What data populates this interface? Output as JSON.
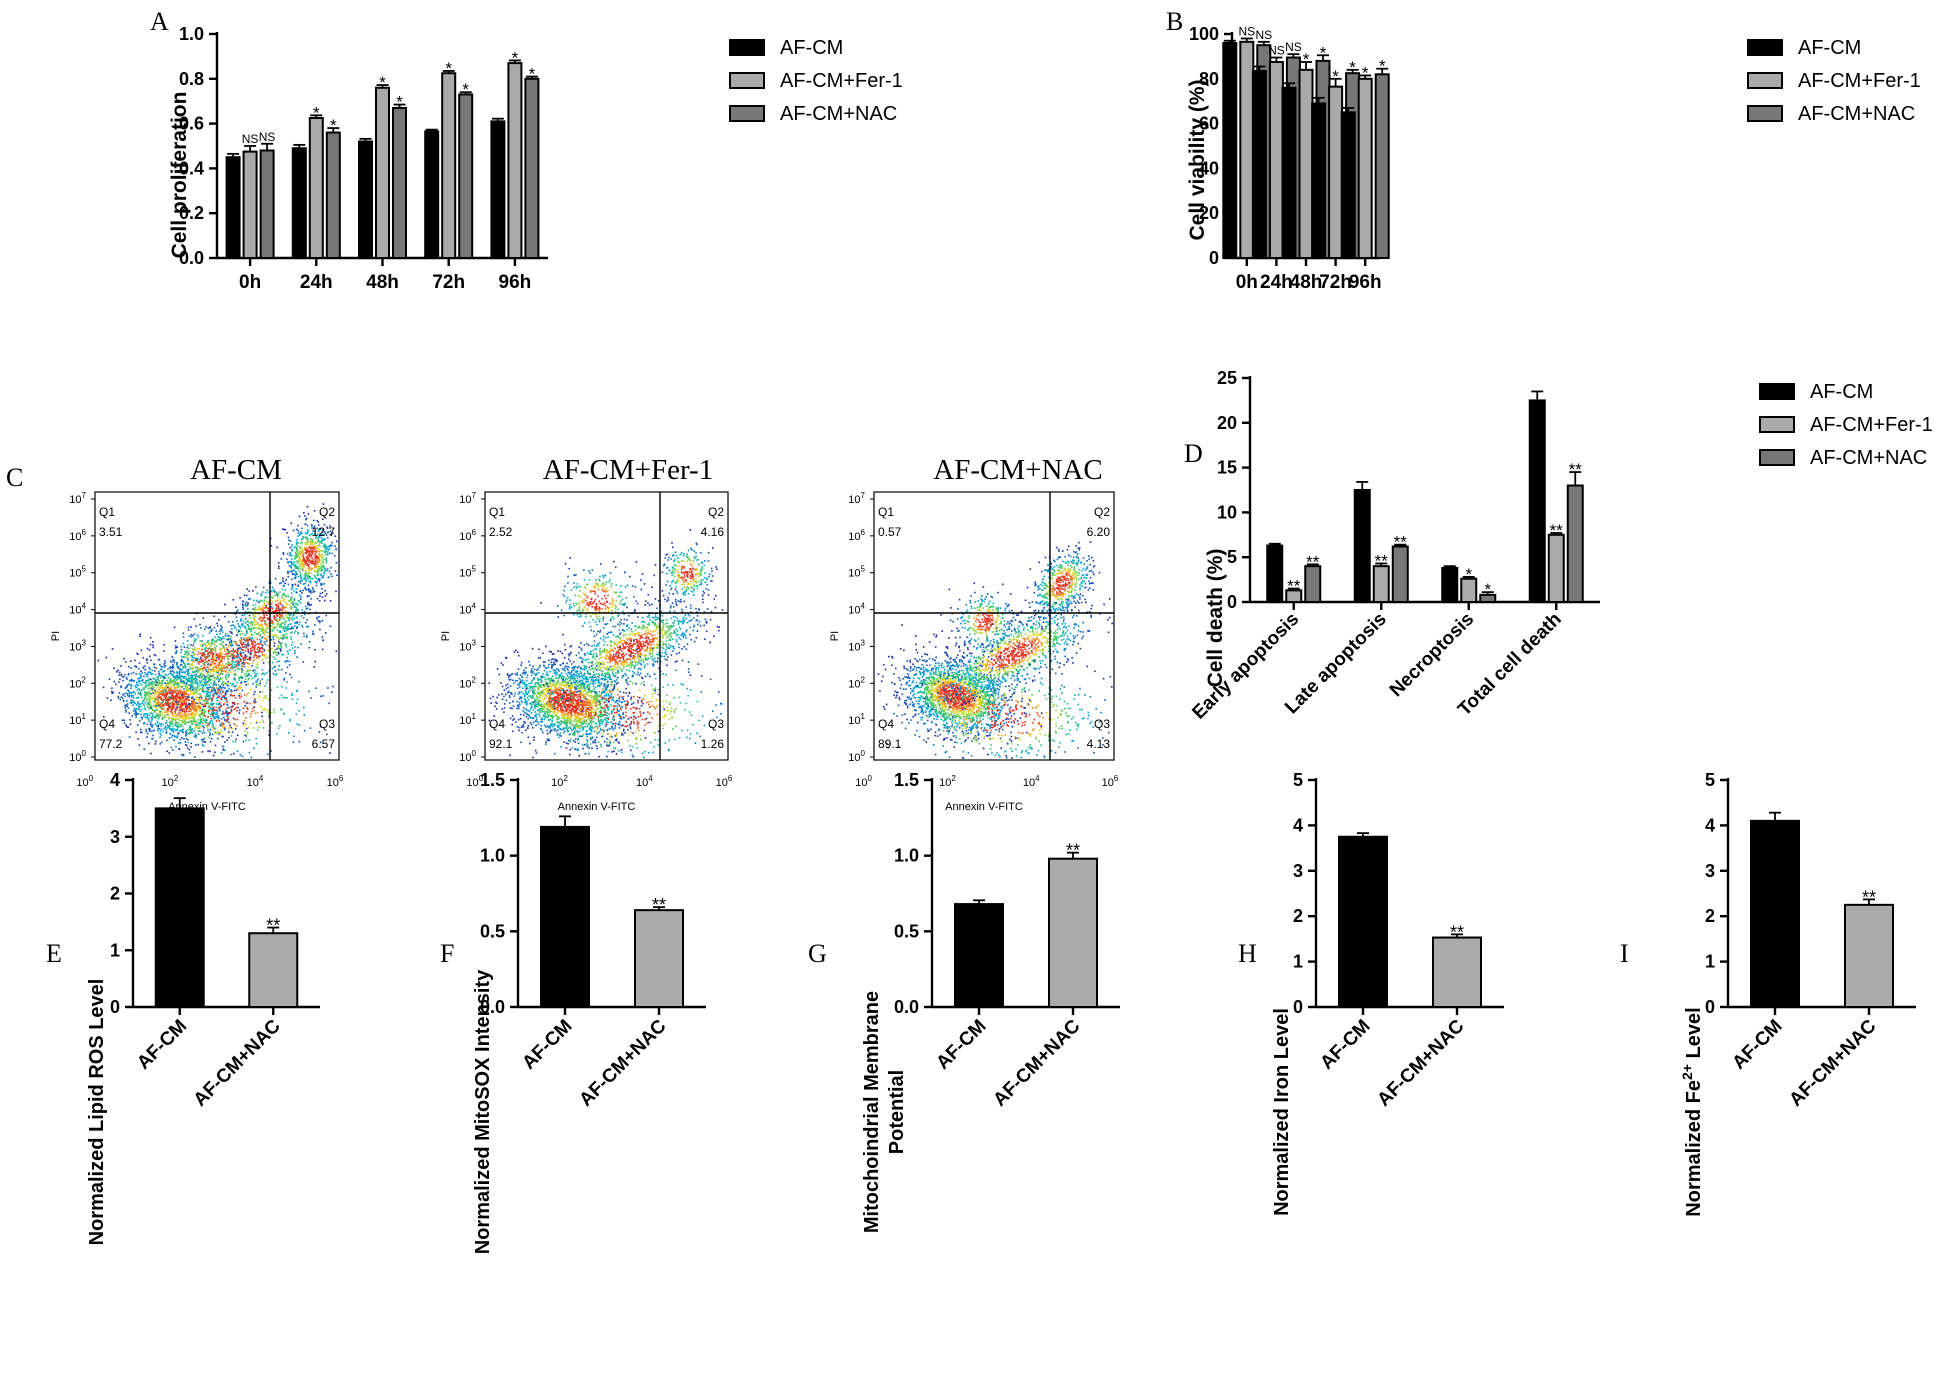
{
  "colors": {
    "black": "#000000",
    "light_gray": "#aaaaaa",
    "mid_gray": "#777777"
  },
  "panels": {
    "A": {
      "letter": "A",
      "ylabel": "Cell proliferation"
    },
    "B": {
      "letter": "B",
      "ylabel": "Cell viability (%)"
    },
    "C": {
      "letter": "C"
    },
    "D": {
      "letter": "D",
      "ylabel": "Cell death (%)"
    },
    "E": {
      "letter": "E",
      "ylabel": "Normalized Lipid ROS Level"
    },
    "F": {
      "letter": "F",
      "ylabel": "Normalized MitoSOX Intensity"
    },
    "G": {
      "letter": "G",
      "ylabel": [
        "Mitochoindrial Membrane",
        "Potential"
      ]
    },
    "H": {
      "letter": "H",
      "ylabel": "Normalized Iron Level"
    },
    "I": {
      "letter": "I",
      "ylabel": "Normalized Fe2+ Level",
      "ylabel_parts": [
        "Normalized Fe",
        "2+",
        " Level"
      ]
    }
  },
  "chart_data": [
    {
      "id": "A",
      "type": "bar",
      "categories": [
        "0h",
        "24h",
        "48h",
        "72h",
        "96h"
      ],
      "series": [
        {
          "name": "AF-CM",
          "values": [
            0.45,
            0.49,
            0.52,
            0.565,
            0.61
          ],
          "errors": [
            0.015,
            0.015,
            0.012,
            0.008,
            0.012
          ],
          "annotations": [
            "",
            "",
            "",
            "",
            ""
          ]
        },
        {
          "name": "AF-CM+Fer-1",
          "values": [
            0.475,
            0.625,
            0.76,
            0.825,
            0.87
          ],
          "errors": [
            0.025,
            0.012,
            0.012,
            0.01,
            0.012
          ],
          "annotations": [
            "NS",
            "*",
            "*",
            "*",
            "*"
          ]
        },
        {
          "name": "AF-CM+NAC",
          "values": [
            0.48,
            0.56,
            0.67,
            0.73,
            0.8
          ],
          "errors": [
            0.03,
            0.02,
            0.015,
            0.01,
            0.01
          ],
          "annotations": [
            "NS",
            "*",
            "*",
            "*",
            "*"
          ]
        }
      ],
      "ylabel": "Cell proliferation",
      "ylim": [
        0,
        1.0
      ],
      "yticks": [
        0.0,
        0.2,
        0.4,
        0.6,
        0.8,
        1.0
      ],
      "ytick_labels": [
        "0.0",
        "0.2",
        "0.4",
        "0.6",
        "0.8",
        "1.0"
      ],
      "legend": "right"
    },
    {
      "id": "B",
      "type": "bar",
      "categories": [
        "0h",
        "24h",
        "48h",
        "72h",
        "96h"
      ],
      "series": [
        {
          "name": "AF-CM",
          "values": [
            96,
            83.5,
            76,
            69,
            65
          ],
          "errors": [
            1,
            2,
            2,
            2.5,
            2
          ],
          "annotations": [
            "",
            "",
            "",
            "",
            ""
          ]
        },
        {
          "name": "AF-CM+Fer-1",
          "values": [
            96.5,
            87.5,
            84,
            76.5,
            80
          ],
          "errors": [
            1.5,
            2,
            3.5,
            3.5,
            1.5
          ],
          "annotations": [
            "NS",
            "NS",
            "*",
            "*",
            "*"
          ]
        },
        {
          "name": "AF-CM+NAC",
          "values": [
            95,
            89.5,
            88,
            82.5,
            82
          ],
          "errors": [
            1.5,
            1.5,
            2.5,
            1.5,
            2.5
          ],
          "annotations": [
            "NS",
            "NS",
            "*",
            "*",
            "*"
          ]
        }
      ],
      "ylabel": "Cell viability (%)",
      "ylim": [
        0,
        100
      ],
      "yticks": [
        0,
        20,
        40,
        60,
        80,
        100
      ],
      "ytick_labels": [
        "0",
        "20",
        "40",
        "60",
        "80",
        "100"
      ],
      "legend": "right"
    },
    {
      "id": "C",
      "type": "scatter",
      "subplots": [
        {
          "title": "AF-CM",
          "quadrants": {
            "Q1": "3.51",
            "Q2": "12.7",
            "Q3": "6.57",
            "Q4": "77.2"
          }
        },
        {
          "title": "AF-CM+Fer-1",
          "quadrants": {
            "Q1": "2.52",
            "Q2": "4.16",
            "Q3": "1.26",
            "Q4": "92.1"
          }
        },
        {
          "title": "AF-CM+NAC",
          "quadrants": {
            "Q1": "0.57",
            "Q2": "6.20",
            "Q3": "4.13",
            "Q4": "89.1"
          }
        }
      ],
      "xlabel": "Annexin V-FITC",
      "ylabel": "PI",
      "x_tick_base": "10",
      "x_tick_exponents": [
        "0",
        "2",
        "4",
        "6"
      ],
      "y_tick_base": "10",
      "y_tick_exponents": [
        "0",
        "1",
        "2",
        "3",
        "4",
        "5",
        "6",
        "7"
      ],
      "quadrant_labels": [
        "Q1",
        "Q2",
        "Q3",
        "Q4"
      ]
    },
    {
      "id": "D",
      "type": "bar",
      "categories": [
        "Early apoptosis",
        "Late apoptosis",
        "Necroptosis",
        "Total cell death"
      ],
      "series": [
        {
          "name": "AF-CM",
          "values": [
            6.3,
            12.5,
            3.8,
            22.5
          ],
          "errors": [
            0.2,
            0.9,
            0.2,
            1.0
          ],
          "annotations": [
            "",
            "",
            "",
            ""
          ]
        },
        {
          "name": "AF-CM+Fer-1",
          "values": [
            1.3,
            4.0,
            2.6,
            7.5
          ],
          "errors": [
            0.2,
            0.3,
            0.2,
            0.2
          ],
          "annotations": [
            "**",
            "**",
            "*",
            "**"
          ]
        },
        {
          "name": "AF-CM+NAC",
          "values": [
            4.0,
            6.2,
            0.8,
            13.0
          ],
          "errors": [
            0.2,
            0.2,
            0.3,
            1.5
          ],
          "annotations": [
            "**",
            "**",
            "*",
            "**"
          ]
        }
      ],
      "ylabel": "Cell death (%)",
      "ylim": [
        0,
        25
      ],
      "yticks": [
        0,
        5,
        10,
        15,
        20,
        25
      ],
      "ytick_labels": [
        "0",
        "5",
        "10",
        "15",
        "20",
        "25"
      ],
      "legend": "right"
    },
    {
      "id": "E",
      "type": "bar",
      "categories": [
        "AF-CM",
        "AF-CM+NAC"
      ],
      "values": [
        3.5,
        1.3
      ],
      "errors": [
        0.18,
        0.1
      ],
      "annotations": [
        "",
        "**"
      ],
      "ylabel": "Normalized Lipid ROS Level",
      "ylim": [
        0,
        4
      ],
      "yticks": [
        0,
        1,
        2,
        3,
        4
      ],
      "ytick_labels": [
        "0",
        "1",
        "2",
        "3",
        "4"
      ]
    },
    {
      "id": "F",
      "type": "bar",
      "categories": [
        "AF-CM",
        "AF-CM+NAC"
      ],
      "values": [
        1.19,
        0.64
      ],
      "errors": [
        0.07,
        0.02
      ],
      "annotations": [
        "",
        "**"
      ],
      "ylabel": "Normalized MitoSOX Intensity",
      "ylim": [
        0,
        1.5
      ],
      "yticks": [
        0,
        0.5,
        1.0,
        1.5
      ],
      "ytick_labels": [
        "0.0",
        "0.5",
        "1.0",
        "1.5"
      ]
    },
    {
      "id": "G",
      "type": "bar",
      "categories": [
        "AF-CM",
        "AF-CM+NAC"
      ],
      "values": [
        0.68,
        0.98
      ],
      "errors": [
        0.025,
        0.04
      ],
      "annotations": [
        "",
        "**"
      ],
      "ylabel": "Mitochoindrial Membrane Potential",
      "ylim": [
        0,
        1.5
      ],
      "yticks": [
        0,
        0.5,
        1.0,
        1.5
      ],
      "ytick_labels": [
        "0.0",
        "0.5",
        "1.0",
        "1.5"
      ]
    },
    {
      "id": "H",
      "type": "bar",
      "categories": [
        "AF-CM",
        "AF-CM+NAC"
      ],
      "values": [
        3.75,
        1.53
      ],
      "errors": [
        0.08,
        0.07
      ],
      "annotations": [
        "",
        "**"
      ],
      "ylabel": "Normalized Iron Level",
      "ylim": [
        0,
        5
      ],
      "yticks": [
        0,
        1,
        2,
        3,
        4,
        5
      ],
      "ytick_labels": [
        "0",
        "1",
        "2",
        "3",
        "4",
        "5"
      ]
    },
    {
      "id": "I",
      "type": "bar",
      "categories": [
        "AF-CM",
        "AF-CM+NAC"
      ],
      "values": [
        4.1,
        2.25
      ],
      "errors": [
        0.18,
        0.12
      ],
      "annotations": [
        "",
        "**"
      ],
      "ylabel": "Normalized Fe2+ Level",
      "ylim": [
        0,
        5
      ],
      "yticks": [
        0,
        1,
        2,
        3,
        4,
        5
      ],
      "ytick_labels": [
        "0",
        "1",
        "2",
        "3",
        "4",
        "5"
      ]
    }
  ]
}
